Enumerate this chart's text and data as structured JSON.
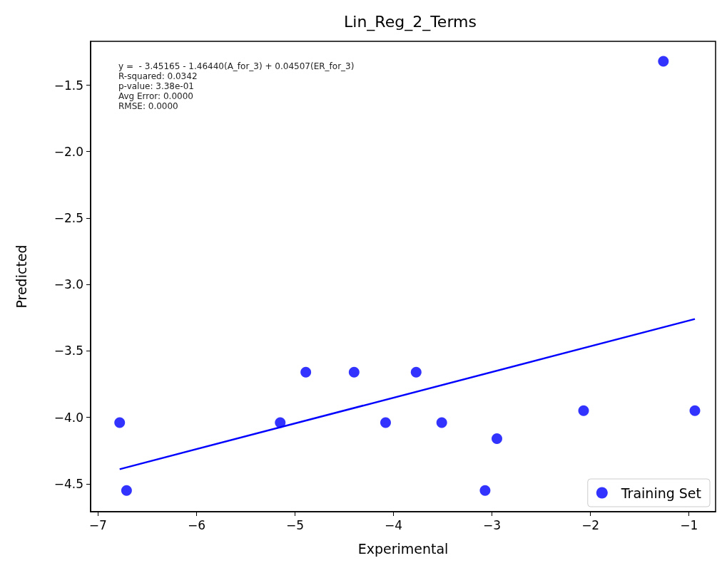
{
  "chart_data": {
    "type": "scatter",
    "title": "Lin_Reg_2_Terms",
    "xlabel": "Experimental",
    "ylabel": "Predicted",
    "annotations": [
      "y =  - 3.45165 - 1.46440(A_for_3) + 0.04507(ER_for_3)",
      "R-squared: 0.0342",
      "p-value: 3.38e-01",
      "Avg Error: 0.0000",
      "RMSE: 0.0000"
    ],
    "x": [
      -6.78,
      -6.71,
      -5.15,
      -4.89,
      -4.4,
      -4.08,
      -3.77,
      -3.51,
      -2.95,
      -3.07,
      -2.07,
      -0.94,
      -1.26
    ],
    "series": [
      {
        "name": "Training Set",
        "color": "#0000ff",
        "values": [
          -4.04,
          -4.55,
          -4.04,
          -3.66,
          -3.66,
          -4.04,
          -3.66,
          -4.04,
          -4.16,
          -4.55,
          -3.95,
          -3.95,
          -1.32
        ]
      },
      {
        "type": "line",
        "marker": "none",
        "color": "#0000ff",
        "x": [
          -6.78,
          -0.94
        ],
        "values": [
          -4.39,
          -3.26
        ]
      }
    ],
    "xlim": [
      -7.075,
      -0.73
    ],
    "ylim": [
      -4.71,
      -1.17
    ],
    "xticks": [
      {
        "value": -7,
        "label": "−7"
      },
      {
        "value": -6,
        "label": "−6"
      },
      {
        "value": -5,
        "label": "−5"
      },
      {
        "value": -4,
        "label": "−4"
      },
      {
        "value": -3,
        "label": "−3"
      },
      {
        "value": -2,
        "label": "−2"
      },
      {
        "value": -1,
        "label": "−1"
      }
    ],
    "yticks": [
      {
        "value": -4.5,
        "label": "−4.5"
      },
      {
        "value": -4,
        "label": "−4.0"
      },
      {
        "value": -3.5,
        "label": "−3.5"
      },
      {
        "value": -3,
        "label": "−3.0"
      },
      {
        "value": -2.5,
        "label": "−2.5"
      },
      {
        "value": -2,
        "label": "−2.0"
      },
      {
        "value": -1.5,
        "label": "−1.5"
      }
    ],
    "grid": false,
    "legend": "bottom right",
    "marker": "circle",
    "line_style": "solid"
  }
}
